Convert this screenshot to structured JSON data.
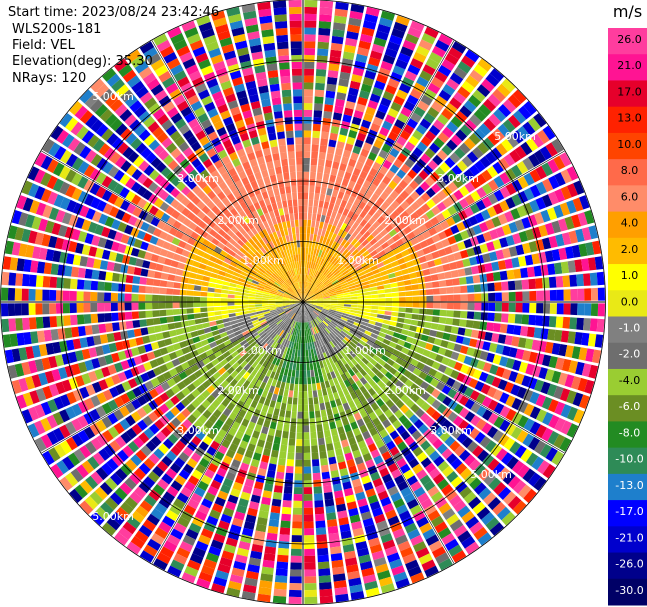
{
  "header": {
    "start_time": "Start time: 2023/08/24 23:42:46",
    "instrument": "WLS200s-181",
    "field": "Field: VEL",
    "elevation": "Elevation(deg): 35.30",
    "nrays": "NRays: 120"
  },
  "colorbar": {
    "unit": "m/s",
    "ticks": [
      "26.0",
      "21.0",
      "17.0",
      "13.0",
      "10.0",
      "8.0",
      "6.0",
      "4.0",
      "2.0",
      "1.0",
      "0.0",
      "-1.0",
      "-2.0",
      "-4.0",
      "-6.0",
      "-8.0",
      "-10.0",
      "-13.0",
      "-17.0",
      "-21.0",
      "-26.0",
      "-30.0"
    ],
    "colors": [
      "#ff3d9e",
      "#ff1493",
      "#e6002b",
      "#ff2200",
      "#ff4400",
      "#ff6a4a",
      "#ff8c69",
      "#ff9f00",
      "#ffbb00",
      "#ffff00",
      "#e9e916",
      "#808080",
      "#6e6e6e",
      "#9acd32",
      "#6b8e23",
      "#228b22",
      "#2e8b57",
      "#1e7fcc",
      "#0000ff",
      "#0000cd",
      "#00008b",
      "#000066"
    ]
  },
  "chart_data": {
    "type": "ppi",
    "field": "VEL",
    "units": "m/s",
    "nrays": 120,
    "range_rings": [
      {
        "label": "1.00km",
        "km": 1
      },
      {
        "label": "2.00km",
        "km": 2
      },
      {
        "label": "3.00km",
        "km": 3
      },
      {
        "label": "5.00km",
        "km": 5
      }
    ],
    "near_field_pattern": [
      {
        "sector": "north",
        "range_km": [
          0,
          1
        ],
        "value_ms": 1.5
      },
      {
        "sector": "north",
        "range_km": [
          1,
          2.7
        ],
        "value_ms": 5.5
      },
      {
        "sector": "south",
        "range_km": [
          0,
          1
        ],
        "value_ms": -2
      },
      {
        "sector": "south",
        "range_km": [
          1,
          2.7
        ],
        "value_ms": -6
      },
      {
        "sector": "south",
        "range_km": [
          0.3,
          1.3
        ],
        "value_ms": -9
      },
      {
        "sector": "east-west",
        "range_km": [
          0,
          1.2
        ],
        "value_ms": 0
      }
    ],
    "far_field": "noise (random velocities) beyond ~3 km",
    "colorbar_range": [
      -30,
      26
    ]
  }
}
